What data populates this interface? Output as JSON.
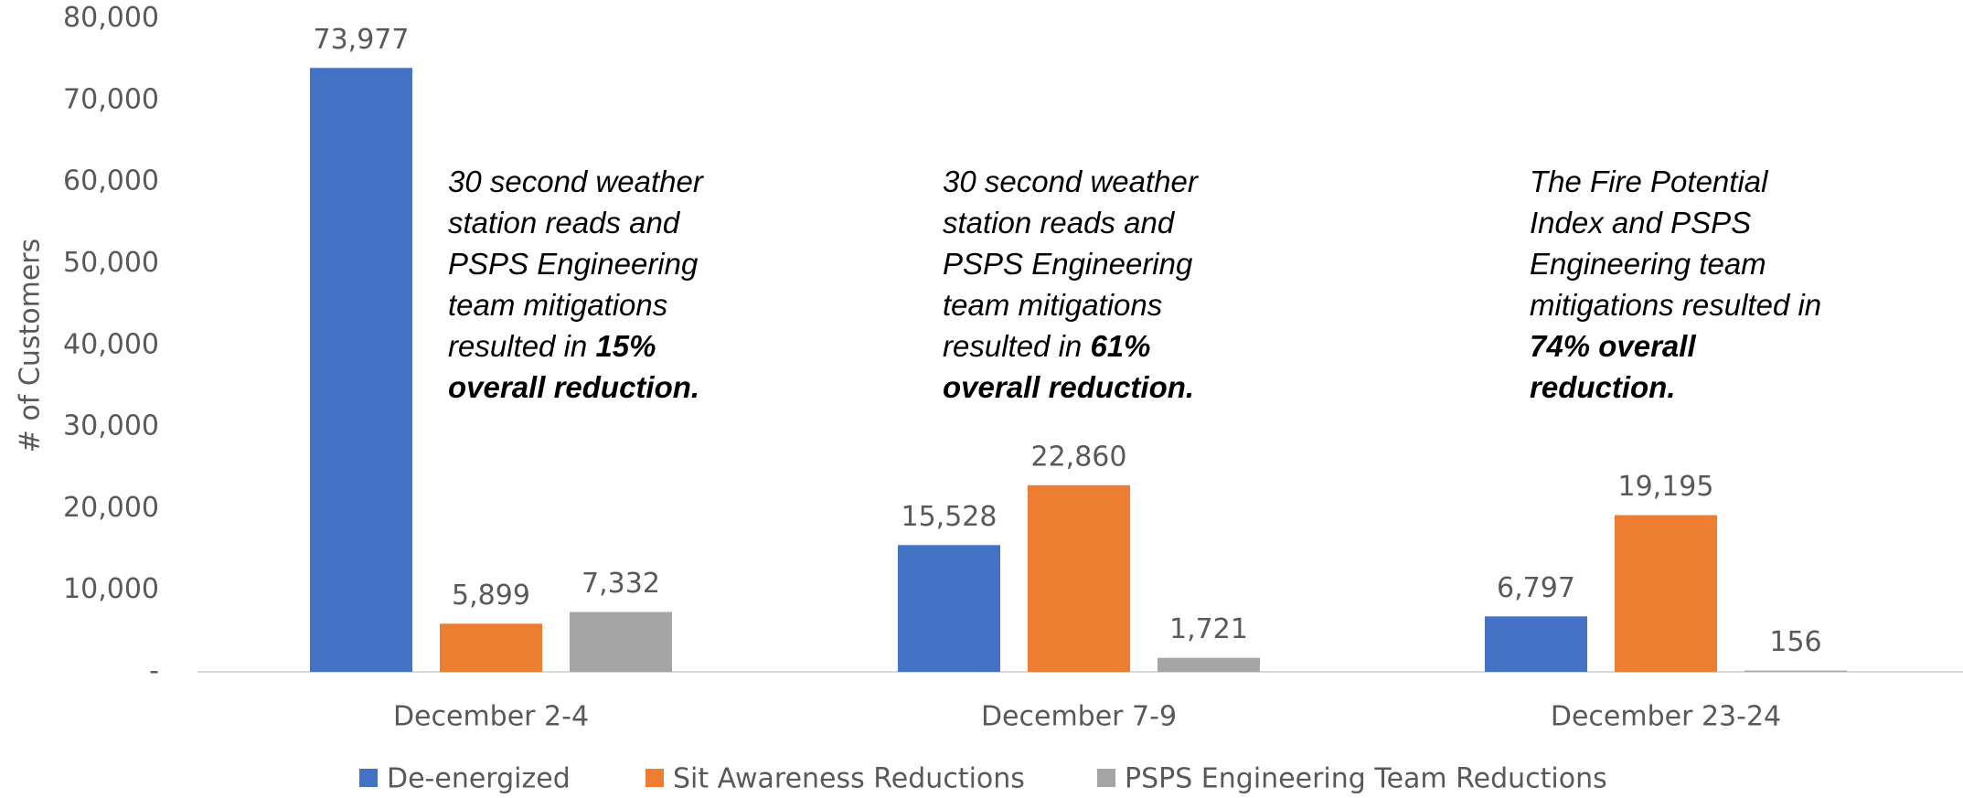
{
  "chart_data": {
    "type": "bar",
    "y_axis_label": "# of Customers",
    "categories": [
      "December 2-4",
      "December 7-9",
      "December 23-24"
    ],
    "series": [
      {
        "name": "De-energized",
        "color": "#4472c4",
        "values": [
          73977,
          15528,
          6797
        ],
        "value_labels": [
          "73,977",
          "15,528",
          "6,797"
        ]
      },
      {
        "name": "Sit Awareness Reductions",
        "color": "#ed7d31",
        "values": [
          5899,
          22860,
          19195
        ],
        "value_labels": [
          "5,899",
          "22,860",
          "19,195"
        ]
      },
      {
        "name": "PSPS  Engineering Team Reductions",
        "color": "#a5a5a5",
        "values": [
          7332,
          1721,
          156
        ],
        "value_labels": [
          "7,332",
          "1,721",
          "156"
        ]
      }
    ],
    "ylim": [
      0,
      80000
    ],
    "yticks": [
      {
        "value": 0,
        "label": "-"
      },
      {
        "value": 10000,
        "label": "10,000"
      },
      {
        "value": 20000,
        "label": "20,000"
      },
      {
        "value": 30000,
        "label": "30,000"
      },
      {
        "value": 40000,
        "label": "40,000"
      },
      {
        "value": 50000,
        "label": "50,000"
      },
      {
        "value": 60000,
        "label": "60,000"
      },
      {
        "value": 70000,
        "label": "70,000"
      },
      {
        "value": 80000,
        "label": "80,000"
      }
    ],
    "grid": false,
    "legend": "bottom",
    "annotations": [
      {
        "lines": [
          [
            {
              "text": "30 second weather",
              "bold": false
            }
          ],
          [
            {
              "text": "station reads and",
              "bold": false
            }
          ],
          [
            {
              "text": "PSPS Engineering",
              "bold": false
            }
          ],
          [
            {
              "text": "team mitigations",
              "bold": false
            }
          ],
          [
            {
              "text": "resulted in ",
              "bold": false
            },
            {
              "text": "15%",
              "bold": true
            }
          ],
          [
            {
              "text": "overall reduction.",
              "bold": true
            }
          ]
        ]
      },
      {
        "lines": [
          [
            {
              "text": "30 second weather",
              "bold": false
            }
          ],
          [
            {
              "text": "station reads and",
              "bold": false
            }
          ],
          [
            {
              "text": "PSPS Engineering",
              "bold": false
            }
          ],
          [
            {
              "text": "team mitigations",
              "bold": false
            }
          ],
          [
            {
              "text": "resulted in ",
              "bold": false
            },
            {
              "text": "61%",
              "bold": true
            }
          ],
          [
            {
              "text": "overall reduction.",
              "bold": true
            }
          ]
        ]
      },
      {
        "lines": [
          [
            {
              "text": "The Fire Potential",
              "bold": false
            }
          ],
          [
            {
              "text": "Index and PSPS",
              "bold": false
            }
          ],
          [
            {
              "text": "Engineering team",
              "bold": false
            }
          ],
          [
            {
              "text": "mitigations resulted in",
              "bold": false
            }
          ],
          [
            {
              "text": "74% overall",
              "bold": true
            }
          ],
          [
            {
              "text": "reduction.",
              "bold": true
            }
          ]
        ]
      }
    ]
  }
}
